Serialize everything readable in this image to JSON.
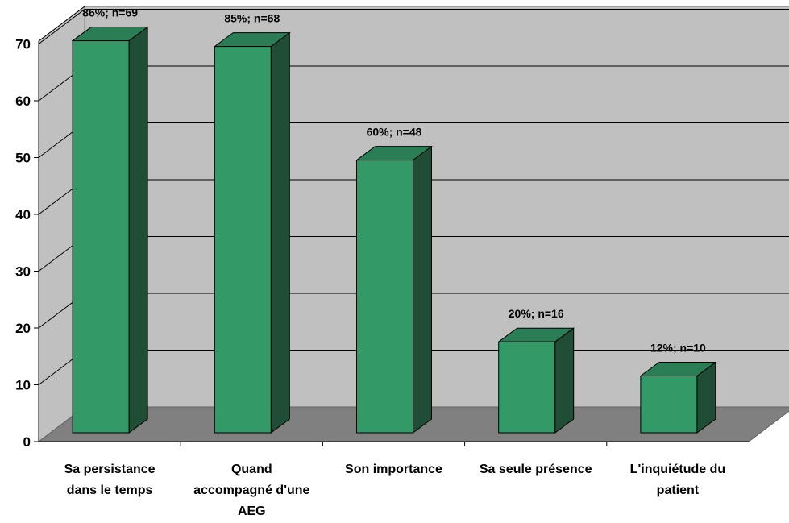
{
  "chart_data": {
    "type": "bar",
    "categories": [
      [
        "Sa persistance",
        "dans le temps"
      ],
      [
        "Quand",
        "accompagné d'une",
        "AEG"
      ],
      [
        "Son importance"
      ],
      [
        "Sa seule présence"
      ],
      [
        "L'inquiétude du",
        "patient"
      ]
    ],
    "values": [
      69,
      68,
      48,
      16,
      10
    ],
    "data_labels": [
      "86%; n=69",
      "85%; n=68",
      "60%; n=48",
      "20%; n=16",
      "12%; n=10"
    ],
    "yticks": [
      "0",
      "10",
      "20",
      "30",
      "40",
      "50",
      "60",
      "70"
    ],
    "ylim": [
      0,
      70
    ],
    "grid": true,
    "three_d": true,
    "colors": {
      "bar_front": "#339966",
      "bar_side": "#1f4d36",
      "bar_top": "#2b7d55",
      "wall": "#c0c0c0",
      "floor": "#808080",
      "grid": "#000000"
    }
  }
}
